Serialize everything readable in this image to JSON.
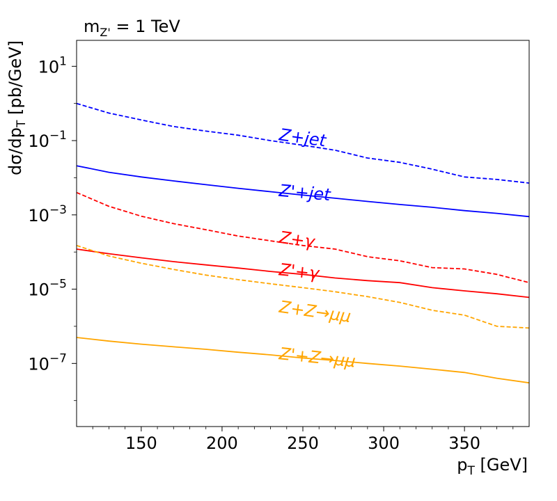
{
  "chart_data": {
    "type": "line",
    "title": "m",
    "title_subscript": "Z'",
    "title_suffix": " = 1 TeV",
    "xlabel": "p",
    "xlabel_subscript": "T",
    "xlabel_suffix": " [GeV]",
    "ylabel": "dσ/dp",
    "ylabel_subscript": "T",
    "ylabel_suffix": " [pb/GeV]",
    "xscale": "linear",
    "yscale": "log",
    "xlim": [
      110,
      390
    ],
    "ylim": [
      2e-09,
      50
    ],
    "x_ticks": [
      150,
      200,
      250,
      300,
      350
    ],
    "y_ticks": [
      {
        "value": 10,
        "base": "10",
        "exp": "1"
      },
      {
        "value": 0.1,
        "base": "10",
        "exp": "−1"
      },
      {
        "value": 0.001,
        "base": "10",
        "exp": "−3"
      },
      {
        "value": 1e-05,
        "base": "10",
        "exp": "−5"
      },
      {
        "value": 1e-07,
        "base": "10",
        "exp": "−7"
      }
    ],
    "series": [
      {
        "name": "Z+jet",
        "label": "Z+jet",
        "color": "#0000ff",
        "style": "dashed",
        "x": [
          110,
          130,
          150,
          170,
          190,
          210,
          230,
          250,
          270,
          290,
          310,
          330,
          350,
          370,
          390
        ],
        "y": [
          1.0,
          0.55,
          0.36,
          0.24,
          0.18,
          0.14,
          0.1,
          0.075,
          0.055,
          0.034,
          0.026,
          0.017,
          0.0105,
          0.009,
          0.0072
        ]
      },
      {
        "name": "Z'+jet",
        "label": "Z'+jet",
        "color": "#0000ff",
        "style": "solid",
        "x": [
          110,
          130,
          150,
          170,
          190,
          210,
          230,
          250,
          270,
          290,
          310,
          330,
          350,
          370,
          390
        ],
        "y": [
          0.021,
          0.014,
          0.0105,
          0.0082,
          0.0065,
          0.0052,
          0.0042,
          0.0034,
          0.0028,
          0.0023,
          0.0019,
          0.0016,
          0.0013,
          0.0011,
          0.0009
        ]
      },
      {
        "name": "Z+gamma",
        "label": "Z+γ",
        "color": "#ff0000",
        "style": "dashed",
        "x": [
          110,
          130,
          150,
          170,
          190,
          210,
          230,
          250,
          270,
          290,
          310,
          330,
          350,
          370,
          390
        ],
        "y": [
          0.004,
          0.0017,
          0.00092,
          0.00058,
          0.0004,
          0.00027,
          0.0002,
          0.00015,
          0.00012,
          7.5e-05,
          5.8e-05,
          3.8e-05,
          3.5e-05,
          2.5e-05,
          1.5e-05
        ]
      },
      {
        "name": "Z'+gamma",
        "label": "Z'+γ",
        "color": "#ff0000",
        "style": "solid",
        "x": [
          110,
          130,
          150,
          170,
          190,
          210,
          230,
          250,
          270,
          290,
          310,
          330,
          350,
          370,
          390
        ],
        "y": [
          0.00012,
          9e-05,
          7e-05,
          5.5e-05,
          4.5e-05,
          3.7e-05,
          3e-05,
          2.5e-05,
          2e-05,
          1.7e-05,
          1.5e-05,
          1.1e-05,
          9e-06,
          7.5e-06,
          6e-06
        ]
      },
      {
        "name": "Z+Z to mumu",
        "label": "Z+Z→μμ",
        "color": "#ffa500",
        "style": "dashed",
        "x": [
          110,
          130,
          150,
          170,
          190,
          210,
          230,
          250,
          270,
          290,
          310,
          330,
          350,
          370,
          390
        ],
        "y": [
          0.00015,
          7.8e-05,
          5e-05,
          3.4e-05,
          2.4e-05,
          1.8e-05,
          1.4e-05,
          1.1e-05,
          8.5e-06,
          6.3e-06,
          4.4e-06,
          2.7e-06,
          2e-06,
          1e-06,
          9e-07
        ]
      },
      {
        "name": "Z'+Z to mumu",
        "label": "Z'+Z→μμ",
        "color": "#ffa500",
        "style": "solid",
        "x": [
          110,
          130,
          150,
          170,
          190,
          210,
          230,
          250,
          270,
          290,
          310,
          330,
          350,
          370,
          390
        ],
        "y": [
          5e-07,
          4e-07,
          3.3e-07,
          2.8e-07,
          2.4e-07,
          2e-07,
          1.7e-07,
          1.4e-07,
          1.2e-07,
          1e-07,
          8.5e-08,
          7e-08,
          5.7e-08,
          4e-08,
          3e-08
        ]
      }
    ]
  }
}
